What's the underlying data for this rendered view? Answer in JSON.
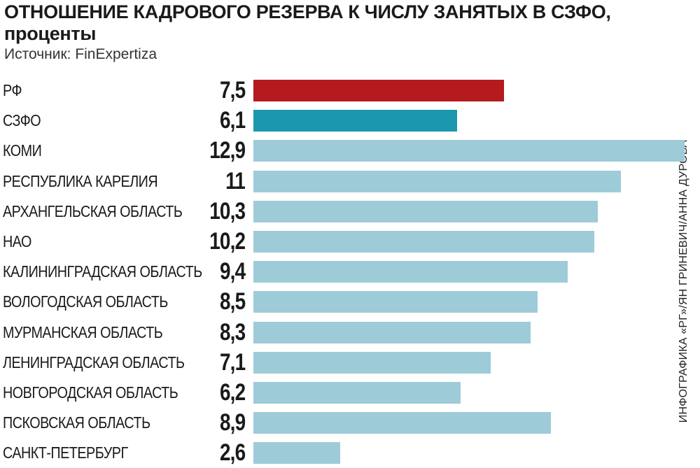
{
  "title": "ОТНОШЕНИЕ КАДРОВОГО РЕЗЕРВА К ЧИСЛУ ЗАНЯТЫХ В СЗФО, проценты",
  "source": "Источник: FinExpertiza",
  "credit": "ИНФОГРАФИКА «РГ»/ЯН ГРИНЕВИЧ/АННА ДУРОВА",
  "colors": {
    "rf": "#b51a1e",
    "szfo": "#1b98ad",
    "region": "#9ecbd8"
  },
  "chart_data": {
    "type": "bar",
    "orientation": "horizontal",
    "title": "ОТНОШЕНИЕ КАДРОВОГО РЕЗЕРВА К ЧИСЛУ ЗАНЯТЫХ В СЗФО, проценты",
    "categories": [
      "РФ",
      "СЗФО",
      "КОМИ",
      "РЕСПУБЛИКА КАРЕЛИЯ",
      "АРХАНГЕЛЬСКАЯ ОБЛАСТЬ",
      "НАО",
      "КАЛИНИНГРАДСКАЯ ОБЛАСТЬ",
      "ВОЛОГОДСКАЯ ОБЛАСТЬ",
      "МУРМАНСКАЯ ОБЛАСТЬ",
      "ЛЕНИНГРАДСКАЯ ОБЛАСТЬ",
      "НОВГОРОДСКАЯ ОБЛАСТЬ",
      "ПСКОВСКАЯ ОБЛАСТЬ",
      "САНКТ-ПЕТЕРБУРГ"
    ],
    "values": [
      7.5,
      6.1,
      12.9,
      11,
      10.3,
      10.2,
      9.4,
      8.5,
      8.3,
      7.1,
      6.2,
      8.9,
      2.6
    ],
    "value_labels": [
      "7,5",
      "6,1",
      "12,9",
      "11",
      "10,3",
      "10,2",
      "9,4",
      "8,5",
      "8,3",
      "7,1",
      "6,2",
      "8,9",
      "2,6"
    ],
    "bar_colors": [
      "rf",
      "szfo",
      "region",
      "region",
      "region",
      "region",
      "region",
      "region",
      "region",
      "region",
      "region",
      "region",
      "region"
    ],
    "xlim": [
      0,
      12.9
    ],
    "grid": false,
    "legend": "none"
  }
}
